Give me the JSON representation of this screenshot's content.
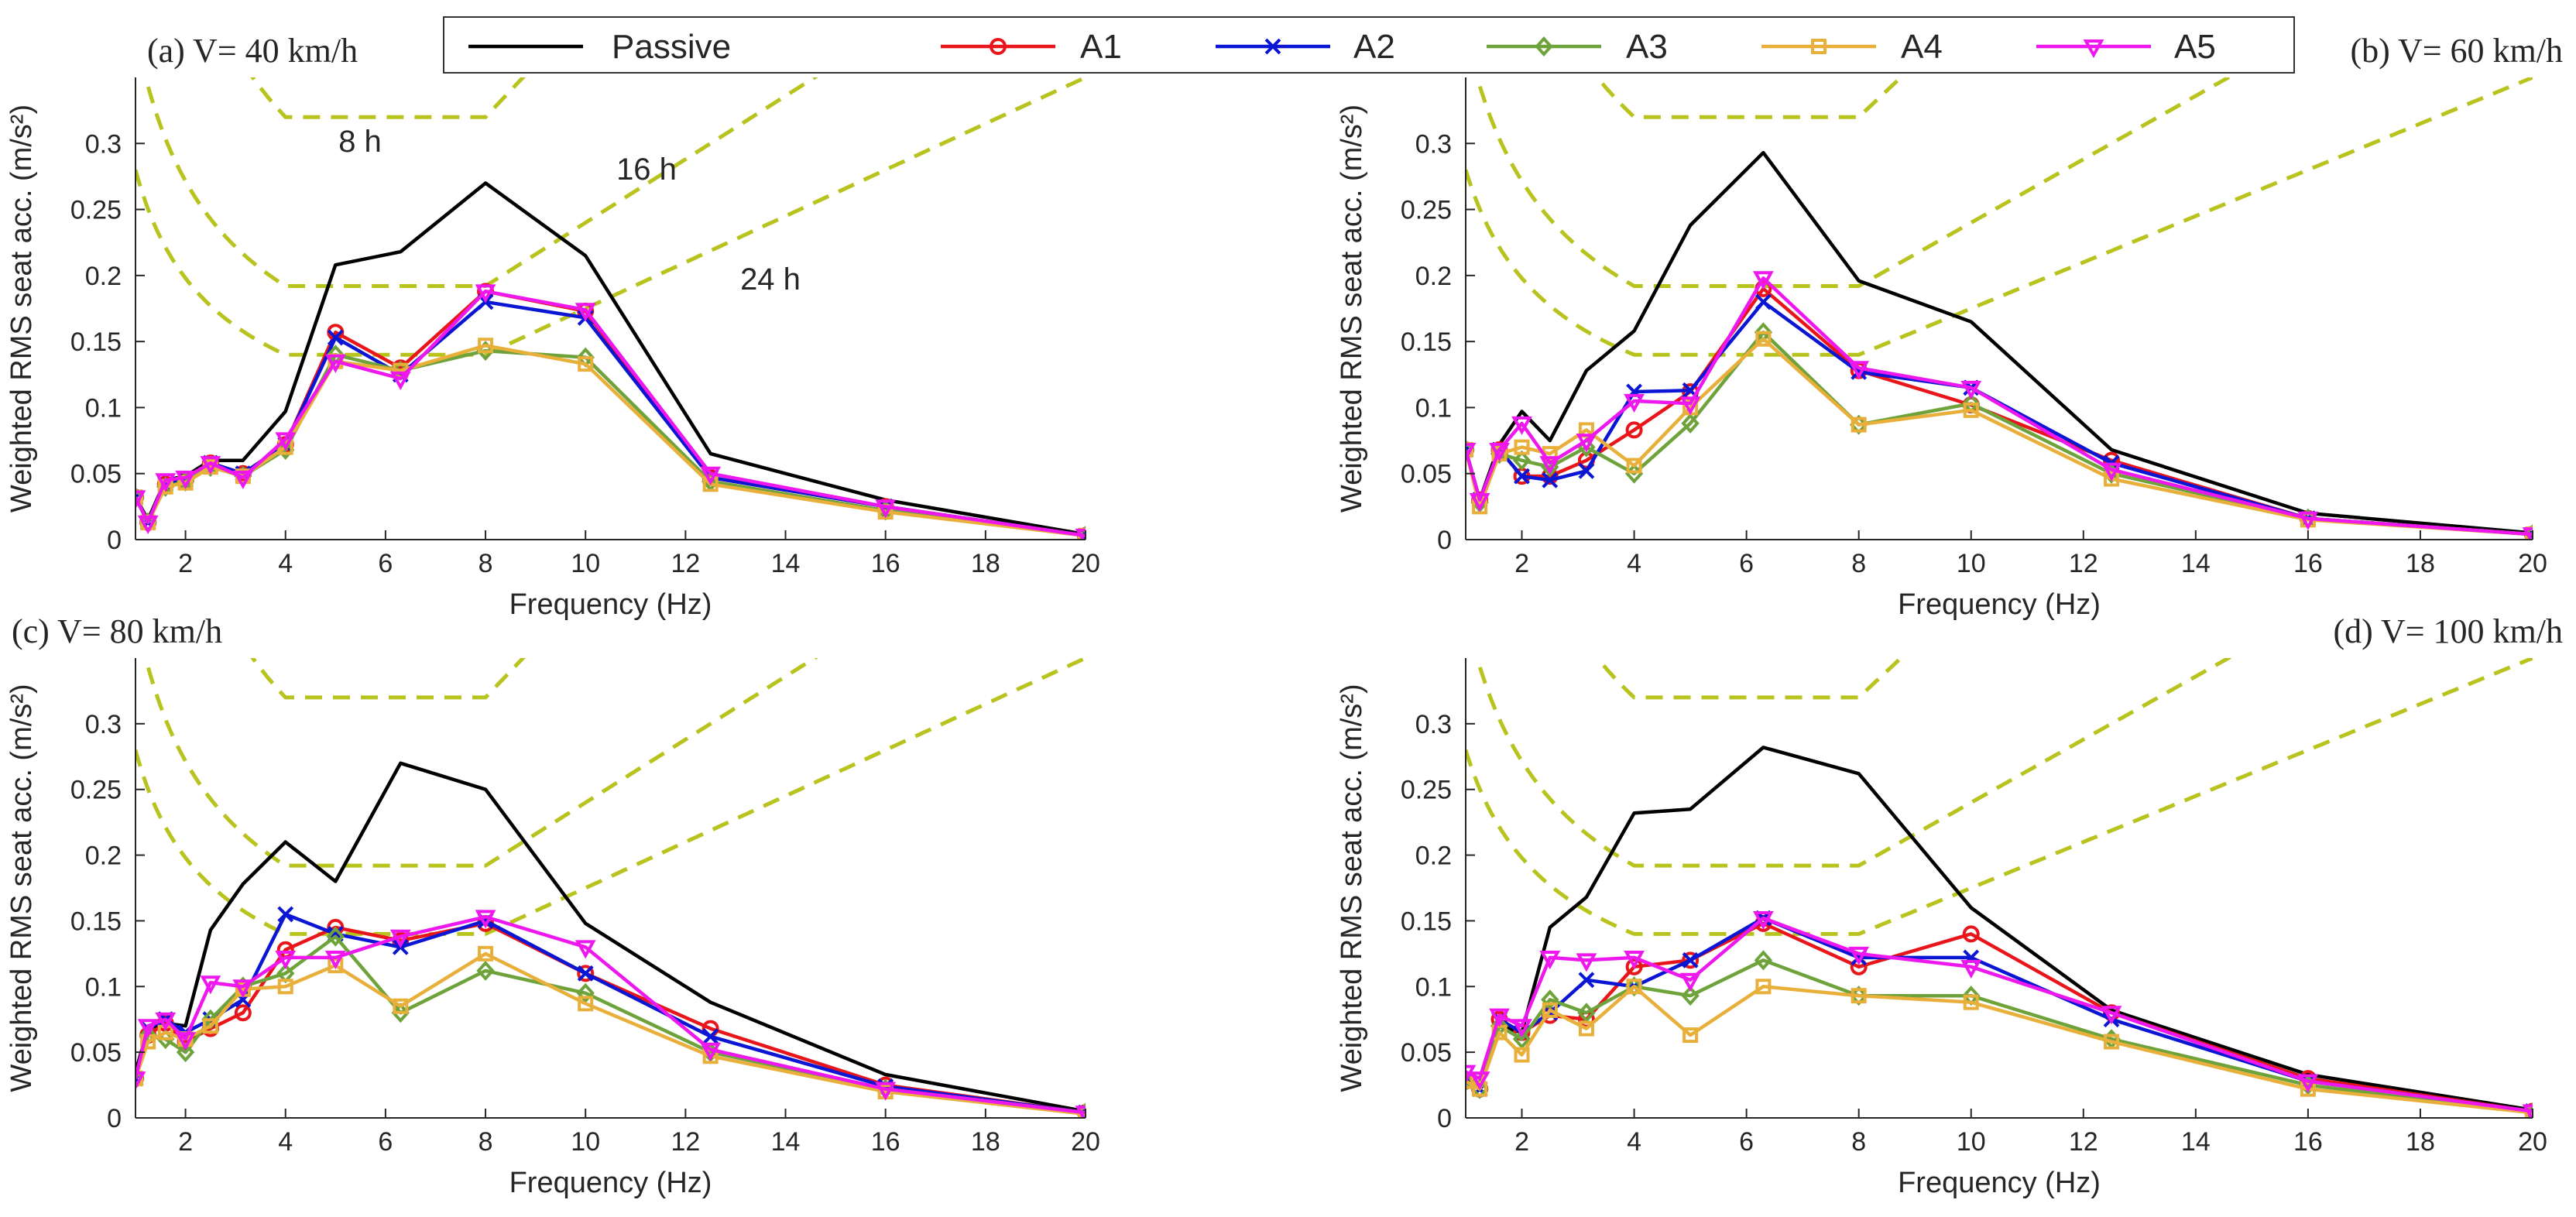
{
  "legend": [
    {
      "name": "Passive",
      "color": "#000000",
      "marker": "none"
    },
    {
      "name": "A1",
      "color": "#e8161b",
      "marker": "circle"
    },
    {
      "name": "A2",
      "color": "#0b15d4",
      "marker": "x"
    },
    {
      "name": "A3",
      "color": "#6ea23a",
      "marker": "diamond"
    },
    {
      "name": "A4",
      "color": "#e8b03a",
      "marker": "square"
    },
    {
      "name": "A5",
      "color": "#ee18ee",
      "marker": "triangle-down"
    }
  ],
  "colors": {
    "comfort": "#b8c31e",
    "axis": "#262626"
  },
  "chart_data": [
    {
      "type": "line",
      "title": "(a) V= 40 km/h",
      "xlabel": "Frequency (Hz)",
      "ylabel": "Weighted RMS seat acc. (m/s²)",
      "xlim": [
        1,
        20
      ],
      "ylim": [
        0,
        0.35
      ],
      "xticks": [
        2,
        4,
        6,
        8,
        10,
        12,
        14,
        16,
        18,
        20
      ],
      "yticks": [
        0,
        0.05,
        0.1,
        0.15,
        0.2,
        0.25,
        0.3
      ],
      "x": [
        1,
        1.25,
        1.6,
        2,
        2.5,
        3.15,
        4,
        5,
        6.3,
        8,
        10,
        12.5,
        16,
        20
      ],
      "series": [
        {
          "name": "Passive",
          "values": [
            0.032,
            0.015,
            0.045,
            0.048,
            0.06,
            0.06,
            0.097,
            0.208,
            0.218,
            0.27,
            0.215,
            0.065,
            0.03,
            0.004
          ]
        },
        {
          "name": "A1",
          "values": [
            0.032,
            0.013,
            0.042,
            0.045,
            0.058,
            0.05,
            0.072,
            0.157,
            0.13,
            0.188,
            0.173,
            0.047,
            0.025,
            0.003
          ]
        },
        {
          "name": "A2",
          "values": [
            0.032,
            0.013,
            0.042,
            0.045,
            0.058,
            0.05,
            0.072,
            0.153,
            0.125,
            0.18,
            0.168,
            0.047,
            0.025,
            0.003
          ]
        },
        {
          "name": "A3",
          "values": [
            0.032,
            0.013,
            0.04,
            0.044,
            0.055,
            0.048,
            0.068,
            0.14,
            0.128,
            0.143,
            0.138,
            0.044,
            0.022,
            0.003
          ]
        },
        {
          "name": "A4",
          "values": [
            0.032,
            0.013,
            0.04,
            0.043,
            0.055,
            0.048,
            0.07,
            0.135,
            0.128,
            0.147,
            0.133,
            0.042,
            0.021,
            0.003
          ]
        },
        {
          "name": "A5",
          "values": [
            0.032,
            0.013,
            0.045,
            0.047,
            0.058,
            0.047,
            0.076,
            0.135,
            0.122,
            0.188,
            0.174,
            0.05,
            0.025,
            0.003
          ]
        }
      ],
      "comfort_labels": [
        "8 h",
        "16 h",
        "24 h"
      ]
    },
    {
      "type": "line",
      "title": "(b) V= 60 km/h",
      "xlabel": "Frequency (Hz)",
      "ylabel": "Weighted RMS seat acc. (m/s²)",
      "xlim": [
        1,
        20
      ],
      "ylim": [
        0,
        0.35
      ],
      "xticks": [
        2,
        4,
        6,
        8,
        10,
        12,
        14,
        16,
        18,
        20
      ],
      "yticks": [
        0,
        0.05,
        0.1,
        0.15,
        0.2,
        0.25,
        0.3
      ],
      "x": [
        1,
        1.25,
        1.6,
        2,
        2.5,
        3.15,
        4,
        5,
        6.3,
        8,
        10,
        12.5,
        16,
        20
      ],
      "series": [
        {
          "name": "Passive",
          "values": [
            0.068,
            0.03,
            0.072,
            0.097,
            0.075,
            0.128,
            0.158,
            0.238,
            0.293,
            0.196,
            0.165,
            0.068,
            0.02,
            0.005
          ]
        },
        {
          "name": "A1",
          "values": [
            0.068,
            0.03,
            0.068,
            0.048,
            0.048,
            0.06,
            0.083,
            0.112,
            0.19,
            0.128,
            0.102,
            0.06,
            0.016,
            0.004
          ]
        },
        {
          "name": "A2",
          "values": [
            0.068,
            0.03,
            0.068,
            0.048,
            0.045,
            0.052,
            0.112,
            0.113,
            0.18,
            0.127,
            0.115,
            0.058,
            0.016,
            0.004
          ]
        },
        {
          "name": "A3",
          "values": [
            0.068,
            0.028,
            0.065,
            0.06,
            0.055,
            0.07,
            0.05,
            0.088,
            0.157,
            0.087,
            0.103,
            0.05,
            0.016,
            0.004
          ]
        },
        {
          "name": "A4",
          "values": [
            0.068,
            0.025,
            0.065,
            0.07,
            0.065,
            0.083,
            0.056,
            0.1,
            0.152,
            0.087,
            0.098,
            0.046,
            0.015,
            0.004
          ]
        },
        {
          "name": "A5",
          "values": [
            0.068,
            0.03,
            0.068,
            0.088,
            0.058,
            0.075,
            0.105,
            0.103,
            0.198,
            0.13,
            0.115,
            0.053,
            0.016,
            0.004
          ]
        }
      ]
    },
    {
      "type": "line",
      "title": "(c) V= 80 km/h",
      "xlabel": "Frequency (Hz)",
      "ylabel": "Weighted RMS seat acc. (m/s²)",
      "xlim": [
        1,
        20
      ],
      "ylim": [
        0,
        0.35
      ],
      "xticks": [
        2,
        4,
        6,
        8,
        10,
        12,
        14,
        16,
        18,
        20
      ],
      "yticks": [
        0,
        0.05,
        0.1,
        0.15,
        0.2,
        0.25,
        0.3
      ],
      "x": [
        1,
        1.25,
        1.6,
        2,
        2.5,
        3.15,
        4,
        5,
        6.3,
        8,
        10,
        12.5,
        16,
        20
      ],
      "series": [
        {
          "name": "Passive",
          "values": [
            0.035,
            0.068,
            0.072,
            0.07,
            0.143,
            0.178,
            0.21,
            0.18,
            0.27,
            0.25,
            0.148,
            0.088,
            0.033,
            0.005
          ]
        },
        {
          "name": "A1",
          "values": [
            0.03,
            0.063,
            0.072,
            0.058,
            0.068,
            0.08,
            0.128,
            0.145,
            0.135,
            0.148,
            0.11,
            0.068,
            0.025,
            0.004
          ]
        },
        {
          "name": "A2",
          "values": [
            0.03,
            0.068,
            0.075,
            0.065,
            0.075,
            0.09,
            0.155,
            0.14,
            0.13,
            0.15,
            0.11,
            0.062,
            0.024,
            0.004
          ]
        },
        {
          "name": "A3",
          "values": [
            0.03,
            0.063,
            0.06,
            0.05,
            0.075,
            0.1,
            0.11,
            0.138,
            0.08,
            0.112,
            0.095,
            0.05,
            0.022,
            0.004
          ]
        },
        {
          "name": "A4",
          "values": [
            0.03,
            0.058,
            0.065,
            0.06,
            0.07,
            0.098,
            0.1,
            0.116,
            0.085,
            0.125,
            0.087,
            0.047,
            0.02,
            0.003
          ]
        },
        {
          "name": "A5",
          "values": [
            0.03,
            0.07,
            0.075,
            0.06,
            0.103,
            0.1,
            0.122,
            0.122,
            0.138,
            0.153,
            0.13,
            0.052,
            0.022,
            0.004
          ]
        }
      ]
    },
    {
      "type": "line",
      "title": "(d) V= 100 km/h",
      "xlabel": "Frequency (Hz)",
      "ylabel": "Weighted RMS seat acc. (m/s²)",
      "xlim": [
        1,
        20
      ],
      "ylim": [
        0,
        0.35
      ],
      "xticks": [
        2,
        4,
        6,
        8,
        10,
        12,
        14,
        16,
        18,
        20
      ],
      "yticks": [
        0,
        0.05,
        0.1,
        0.15,
        0.2,
        0.25,
        0.3
      ],
      "x": [
        1,
        1.25,
        1.6,
        2,
        2.5,
        3.15,
        4,
        5,
        6.3,
        8,
        10,
        12.5,
        16,
        20
      ],
      "series": [
        {
          "name": "Passive",
          "values": [
            0.028,
            0.025,
            0.07,
            0.065,
            0.145,
            0.168,
            0.232,
            0.235,
            0.282,
            0.262,
            0.16,
            0.082,
            0.033,
            0.006
          ]
        },
        {
          "name": "A1",
          "values": [
            0.028,
            0.022,
            0.075,
            0.065,
            0.078,
            0.075,
            0.115,
            0.12,
            0.148,
            0.115,
            0.14,
            0.08,
            0.03,
            0.005
          ]
        },
        {
          "name": "A2",
          "values": [
            0.028,
            0.022,
            0.075,
            0.065,
            0.08,
            0.105,
            0.1,
            0.12,
            0.152,
            0.122,
            0.122,
            0.075,
            0.028,
            0.005
          ]
        },
        {
          "name": "A3",
          "values": [
            0.028,
            0.022,
            0.07,
            0.06,
            0.09,
            0.08,
            0.1,
            0.093,
            0.12,
            0.093,
            0.093,
            0.06,
            0.025,
            0.004
          ]
        },
        {
          "name": "A4",
          "values": [
            0.028,
            0.022,
            0.065,
            0.048,
            0.082,
            0.068,
            0.1,
            0.063,
            0.1,
            0.093,
            0.088,
            0.058,
            0.022,
            0.004
          ]
        },
        {
          "name": "A5",
          "values": [
            0.035,
            0.03,
            0.078,
            0.07,
            0.122,
            0.12,
            0.122,
            0.105,
            0.152,
            0.125,
            0.115,
            0.08,
            0.028,
            0.005
          ]
        }
      ]
    }
  ]
}
